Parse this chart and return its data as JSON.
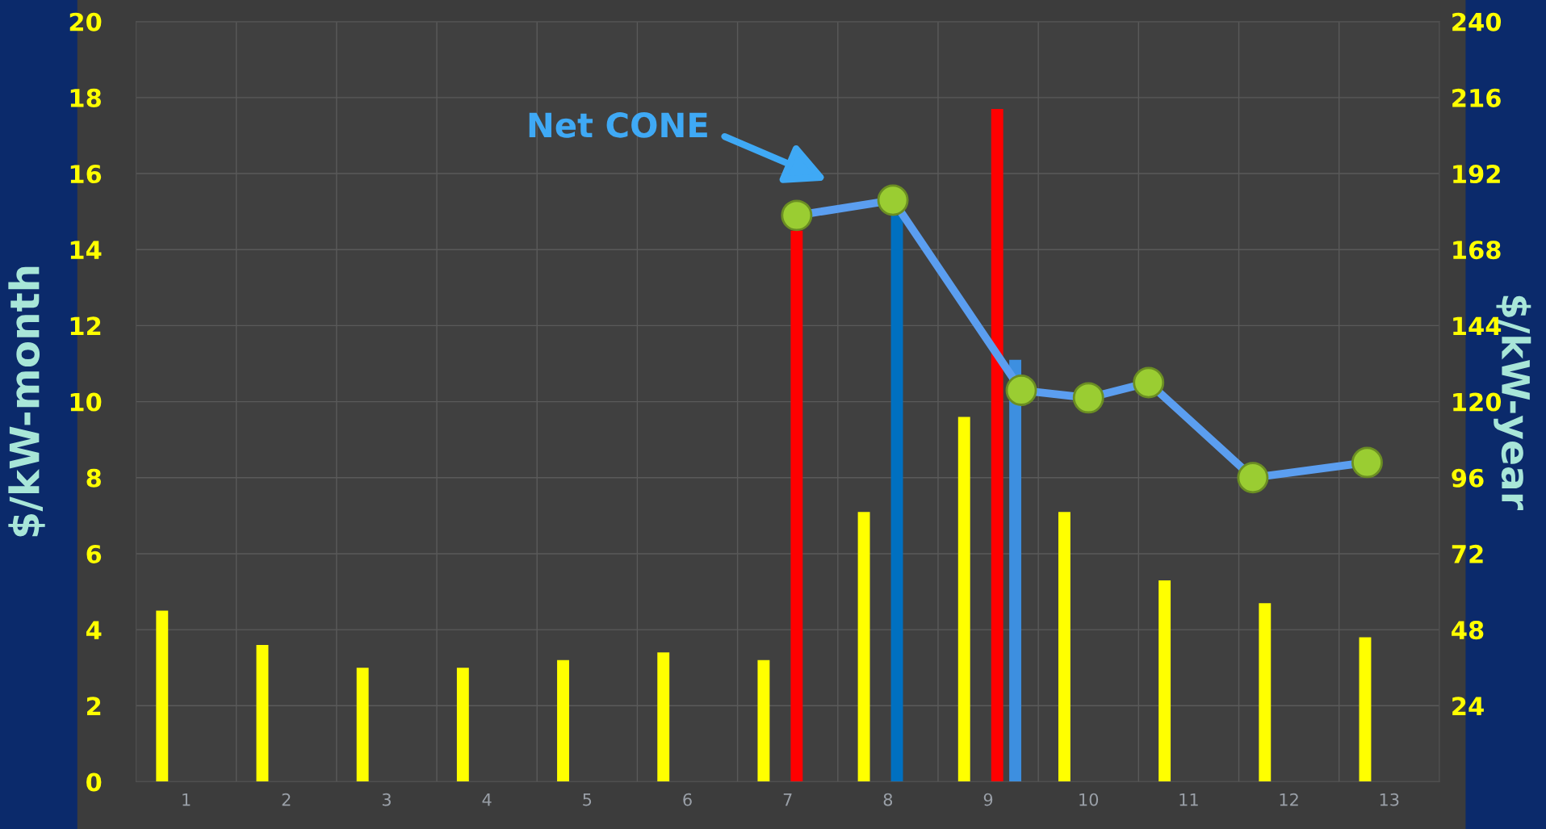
{
  "chart_data": {
    "type": "bar",
    "xlim": [
      0.5,
      13.5
    ],
    "xticks": [
      1,
      2,
      3,
      4,
      5,
      6,
      7,
      8,
      9,
      10,
      11,
      12,
      13
    ],
    "series": [
      {
        "color": "#ffff00",
        "x": [
          0.76,
          1.76,
          2.76,
          3.76,
          4.76,
          5.76,
          6.76,
          7.76,
          8.76,
          9.76,
          10.76,
          11.76,
          12.76
        ],
        "values": [
          4.5,
          3.6,
          3.0,
          3.0,
          3.2,
          3.4,
          3.2,
          7.1,
          9.6,
          7.1,
          5.3,
          4.7,
          3.8
        ]
      },
      {
        "color": "#ff0000",
        "x": [
          7.09,
          9.09
        ],
        "values": [
          14.5,
          17.7
        ]
      },
      {
        "color": "#0070c0",
        "x": [
          8.09
        ],
        "values": [
          14.9
        ]
      },
      {
        "color": "#3d8fe0",
        "x": [
          9.27
        ],
        "values": [
          11.1
        ]
      },
      {
        "type": "line",
        "color": "#5b9ef0",
        "marker": "circle",
        "x": [
          7.09,
          8.05,
          9.33,
          10.0,
          10.6,
          11.64,
          12.78
        ],
        "values": [
          14.9,
          15.3,
          10.3,
          10.1,
          10.5,
          8.0,
          8.4
        ]
      }
    ],
    "ylabel": "$/kW-month",
    "y2label": "$/kW-year",
    "ylim": [
      0,
      20
    ],
    "yticks": [
      0,
      2,
      4,
      6,
      8,
      10,
      12,
      14,
      16,
      18,
      20
    ],
    "y2lim": [
      0,
      240
    ],
    "y2ticks": [
      24,
      48,
      72,
      96,
      120,
      144,
      168,
      192,
      216,
      240
    ],
    "annotations": [
      "Net CONE"
    ],
    "grid": true,
    "legend": false
  }
}
